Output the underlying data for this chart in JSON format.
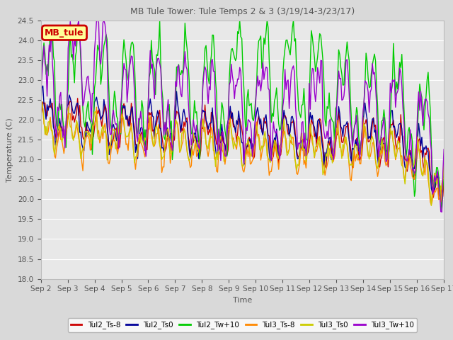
{
  "title": "MB Tule Tower: Tule Temps 2 & 3 (3/19/14-3/23/17)",
  "xlabel": "Time",
  "ylabel": "Temperature (C)",
  "ylim": [
    18.0,
    24.5
  ],
  "yticks": [
    18.0,
    18.5,
    19.0,
    19.5,
    20.0,
    20.5,
    21.0,
    21.5,
    22.0,
    22.5,
    23.0,
    23.5,
    24.0,
    24.5
  ],
  "xtick_labels": [
    "Sep 2",
    "Sep 3",
    "Sep 4",
    "Sep 5",
    "Sep 6",
    "Sep 7",
    "Sep 8",
    "Sep 9",
    "Sep 10",
    "Sep 11",
    "Sep 12",
    "Sep 13",
    "Sep 14",
    "Sep 15",
    "Sep 16",
    "Sep 17"
  ],
  "legend_label": "MB_tule",
  "legend_bg": "#ffff99",
  "legend_edge": "#cc0000",
  "bg_color": "#d9d9d9",
  "plot_bg": "#e8e8e8",
  "grid_color": "#ffffff",
  "series_colors": {
    "Tul2_Ts-8": "#cc0000",
    "Tul2_Ts0": "#000099",
    "Tul2_Tw+10": "#00cc00",
    "Tul3_Ts-8": "#ff8800",
    "Tul3_Ts0": "#cccc00",
    "Tul3_Tw+10": "#9900cc"
  },
  "n_days": 16,
  "samples_per_day": 24,
  "seed": 42
}
